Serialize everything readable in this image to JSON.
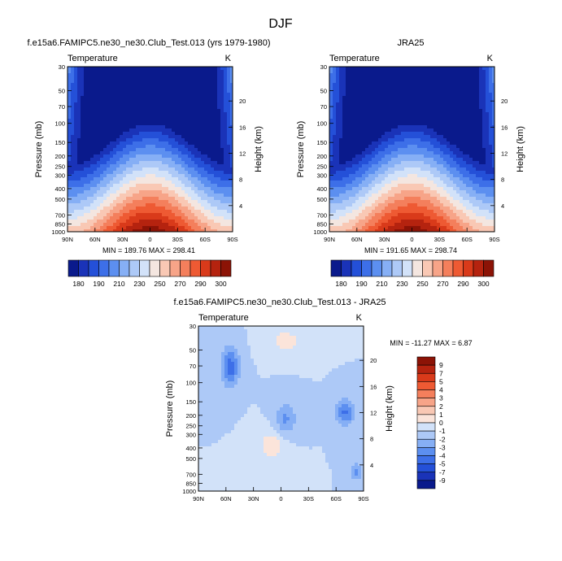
{
  "figure_title": "DJF",
  "panels": [
    {
      "title": "f.e15a6.FAMIPC5.ne30_ne30.Club_Test.013 (yrs 1979-1980)",
      "left_label": "Temperature",
      "right_label": "K",
      "stats": "MIN = 189.76   MAX = 298.41"
    },
    {
      "title": "JRA25",
      "left_label": "Temperature",
      "right_label": "K",
      "stats": "MIN = 191.65   MAX = 298.74"
    },
    {
      "title": "f.e15a6.FAMIPC5.ne30_ne30.Club_Test.013 - JRA25",
      "left_label": "Temperature",
      "right_label": "K",
      "stats": "MIN = -11.27   MAX =   6.87"
    }
  ],
  "colorbars": {
    "absolute": {
      "labels": [
        "180",
        "190",
        "210",
        "230",
        "250",
        "270",
        "290",
        "300"
      ],
      "colors": [
        "#0a1a8c",
        "#1a33b8",
        "#2450d8",
        "#3d6fe8",
        "#5c8ff0",
        "#86aff5",
        "#adc9f7",
        "#d2e2f9",
        "#f4e6e0",
        "#f9c8b4",
        "#f7a488",
        "#f47f5c",
        "#ee5a33",
        "#d93a1a",
        "#b5230f",
        "#8c1306"
      ]
    },
    "difference": {
      "labels": [
        "9",
        "7",
        "5",
        "4",
        "3",
        "2",
        "1",
        "0",
        "-1",
        "-2",
        "-3",
        "-4",
        "-5",
        "-7",
        "-9"
      ],
      "colors": [
        "#8c1306",
        "#b5230f",
        "#d93a1a",
        "#ee5a33",
        "#f47f5c",
        "#f7a488",
        "#f9c8b4",
        "#fbe4da",
        "#d2e2f9",
        "#adc9f7",
        "#86aff5",
        "#5c8ff0",
        "#3d6fe8",
        "#2450d8",
        "#1a33b8",
        "#0a1a8c"
      ]
    }
  },
  "chart_data": [
    {
      "type": "heatmap",
      "title": "f.e15a6.FAMIPC5.ne30_ne30.Club_Test.013 (yrs 1979-1980)",
      "variable": "Temperature",
      "units": "K",
      "xlabel": "",
      "ylabel": "Pressure (mb)",
      "right_ylabel": "Height (km)",
      "x_ticks": [
        "90N",
        "60N",
        "30N",
        "0",
        "30S",
        "60S",
        "90S"
      ],
      "y_ticks": [
        30,
        50,
        70,
        100,
        150,
        200,
        250,
        300,
        400,
        500,
        700,
        850,
        1000
      ],
      "right_ticks": [
        4,
        8,
        12,
        16,
        20
      ],
      "ylog": true,
      "min": 189.76,
      "max": 298.41
    },
    {
      "type": "heatmap",
      "title": "JRA25",
      "variable": "Temperature",
      "units": "K",
      "xlabel": "",
      "ylabel": "Pressure (mb)",
      "right_ylabel": "Height (km)",
      "x_ticks": [
        "90N",
        "60N",
        "30N",
        "0",
        "30S",
        "60S",
        "90S"
      ],
      "y_ticks": [
        30,
        50,
        70,
        100,
        150,
        200,
        250,
        300,
        400,
        500,
        700,
        850,
        1000
      ],
      "right_ticks": [
        4,
        8,
        12,
        16,
        20
      ],
      "ylog": true,
      "min": 191.65,
      "max": 298.74
    },
    {
      "type": "heatmap",
      "title": "f.e15a6.FAMIPC5.ne30_ne30.Club_Test.013 - JRA25",
      "variable": "Temperature",
      "units": "K",
      "xlabel": "",
      "ylabel": "Pressure (mb)",
      "right_ylabel": "Height (km)",
      "x_ticks": [
        "90N",
        "60N",
        "30N",
        "0",
        "30S",
        "60S",
        "90S"
      ],
      "y_ticks": [
        30,
        50,
        70,
        100,
        150,
        200,
        250,
        300,
        400,
        500,
        700,
        850,
        1000
      ],
      "right_ticks": [
        4,
        8,
        12,
        16,
        20
      ],
      "ylog": true,
      "min": -11.27,
      "max": 6.87
    }
  ]
}
